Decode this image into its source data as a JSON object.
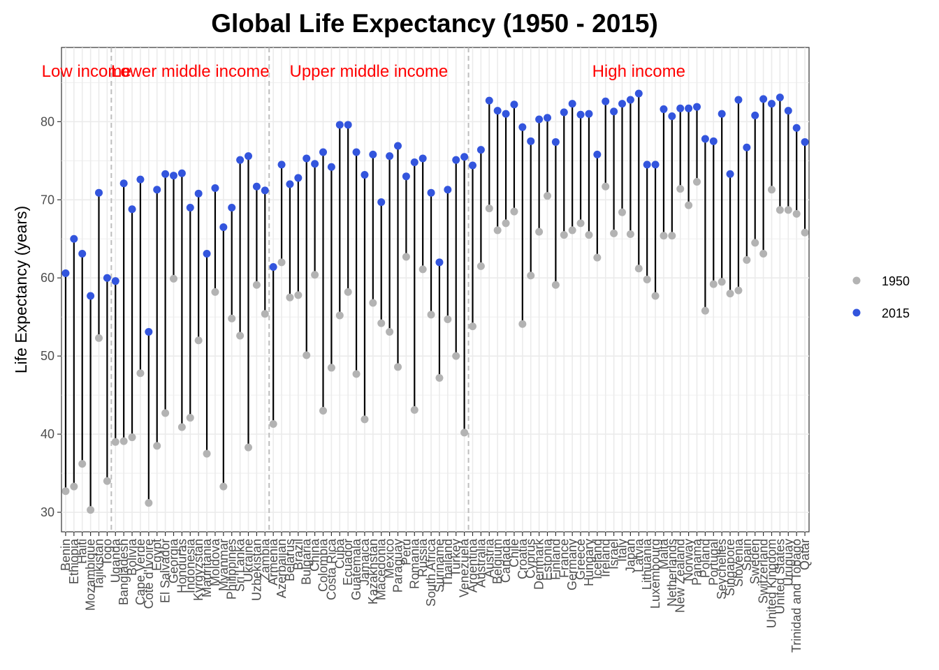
{
  "chart_data": {
    "type": "dumbbell",
    "title": "Global Life Expectancy (1950 - 2015)",
    "xlabel": "",
    "ylabel": "Life Expectancy (years)",
    "ylim": [
      27.5,
      89.5
    ],
    "yticks": [
      30,
      40,
      50,
      60,
      70,
      80
    ],
    "grid": true,
    "legend_position": "right",
    "series": [
      {
        "name": "1950",
        "color": "#b3b3b3"
      },
      {
        "name": "2015",
        "color": "#3355dd"
      }
    ],
    "groups": [
      {
        "label": "Low income",
        "start": 0
      },
      {
        "label": "Lower middle income",
        "start": 6
      },
      {
        "label": "Upper middle income",
        "start": 25
      },
      {
        "label": "High income",
        "start": 49
      }
    ],
    "points": [
      {
        "country": "Benin",
        "y1950": 32.7,
        "y2015": 60.6
      },
      {
        "country": "Ethiopia",
        "y1950": 33.3,
        "y2015": 65.0
      },
      {
        "country": "Haiti",
        "y1950": 36.2,
        "y2015": 63.1
      },
      {
        "country": "Mozambique",
        "y1950": 30.3,
        "y2015": 57.7
      },
      {
        "country": "Tajikistan",
        "y1950": 52.3,
        "y2015": 70.9
      },
      {
        "country": "Togo",
        "y1950": 34.0,
        "y2015": 60.0
      },
      {
        "country": "Uganda",
        "y1950": 39.0,
        "y2015": 59.6
      },
      {
        "country": "Bangladesh",
        "y1950": 39.1,
        "y2015": 72.1
      },
      {
        "country": "Bolivia",
        "y1950": 39.6,
        "y2015": 68.8
      },
      {
        "country": "Cape Verde",
        "y1950": 47.8,
        "y2015": 72.6
      },
      {
        "country": "Cote d'Ivoire",
        "y1950": 31.2,
        "y2015": 53.1
      },
      {
        "country": "Egypt",
        "y1950": 38.5,
        "y2015": 71.3
      },
      {
        "country": "El Salvador",
        "y1950": 42.7,
        "y2015": 73.3
      },
      {
        "country": "Georgia",
        "y1950": 59.9,
        "y2015": 73.1
      },
      {
        "country": "Honduras",
        "y1950": 40.9,
        "y2015": 73.4
      },
      {
        "country": "Indonesia",
        "y1950": 42.1,
        "y2015": 69.0
      },
      {
        "country": "Kyrgyzstan",
        "y1950": 52.0,
        "y2015": 70.8
      },
      {
        "country": "Mauritania",
        "y1950": 37.5,
        "y2015": 63.1
      },
      {
        "country": "Moldova",
        "y1950": 58.2,
        "y2015": 71.5
      },
      {
        "country": "Myanmar",
        "y1950": 33.3,
        "y2015": 66.5
      },
      {
        "country": "Philippines",
        "y1950": 54.8,
        "y2015": 69.0
      },
      {
        "country": "Sri Lanka",
        "y1950": 52.6,
        "y2015": 75.1
      },
      {
        "country": "Ukraine",
        "y1950": 38.3,
        "y2015": 75.6
      },
      {
        "country": "Uzbekistan",
        "y1950": 59.1,
        "y2015": 71.7
      },
      {
        "country": "Zambia",
        "y1950": 55.4,
        "y2015": 71.2
      },
      {
        "country": "Armenia",
        "y1950": 41.3,
        "y2015": 61.4
      },
      {
        "country": "Azerbaijan",
        "y1950": 62.0,
        "y2015": 74.5
      },
      {
        "country": "Belarus",
        "y1950": 57.5,
        "y2015": 72.0
      },
      {
        "country": "Brazil",
        "y1950": 57.8,
        "y2015": 72.8
      },
      {
        "country": "Bulgaria",
        "y1950": 50.1,
        "y2015": 75.3
      },
      {
        "country": "China",
        "y1950": 60.4,
        "y2015": 74.6
      },
      {
        "country": "Colombia",
        "y1950": 43.0,
        "y2015": 76.1
      },
      {
        "country": "Costa Rica",
        "y1950": 48.5,
        "y2015": 74.2
      },
      {
        "country": "Cuba",
        "y1950": 55.2,
        "y2015": 79.6
      },
      {
        "country": "Ecuador",
        "y1950": 58.2,
        "y2015": 79.6
      },
      {
        "country": "Guatemala",
        "y1950": 47.7,
        "y2015": 76.1
      },
      {
        "country": "Jamaica",
        "y1950": 41.9,
        "y2015": 73.2
      },
      {
        "country": "Kazakhstan",
        "y1950": 56.8,
        "y2015": 75.8
      },
      {
        "country": "Macedonia",
        "y1950": 54.2,
        "y2015": 69.7
      },
      {
        "country": "Mexico",
        "y1950": 53.1,
        "y2015": 75.6
      },
      {
        "country": "Paraguay",
        "y1950": 48.6,
        "y2015": 76.9
      },
      {
        "country": "Peru",
        "y1950": 62.7,
        "y2015": 73.0
      },
      {
        "country": "Romania",
        "y1950": 43.1,
        "y2015": 74.8
      },
      {
        "country": "Russia",
        "y1950": 61.1,
        "y2015": 75.3
      },
      {
        "country": "South Africa",
        "y1950": 55.3,
        "y2015": 70.9
      },
      {
        "country": "Suriname",
        "y1950": 47.2,
        "y2015": 62.0
      },
      {
        "country": "Thailand",
        "y1950": 54.7,
        "y2015": 71.3
      },
      {
        "country": "Turkey",
        "y1950": 50.0,
        "y2015": 75.1
      },
      {
        "country": "Venezuela",
        "y1950": 40.2,
        "y2015": 75.5
      },
      {
        "country": "Argentina",
        "y1950": 53.8,
        "y2015": 74.4
      },
      {
        "country": "Australia",
        "y1950": 61.5,
        "y2015": 76.4
      },
      {
        "country": "Austria",
        "y1950": 68.9,
        "y2015": 82.7
      },
      {
        "country": "Belgium",
        "y1950": 66.1,
        "y2015": 81.4
      },
      {
        "country": "Canada",
        "y1950": 67.0,
        "y2015": 81.0
      },
      {
        "country": "Chile",
        "y1950": 68.5,
        "y2015": 82.2
      },
      {
        "country": "Croatia",
        "y1950": 54.1,
        "y2015": 79.3
      },
      {
        "country": "Cyprus",
        "y1950": 60.3,
        "y2015": 77.5
      },
      {
        "country": "Denmark",
        "y1950": 65.9,
        "y2015": 80.3
      },
      {
        "country": "Estonia",
        "y1950": 70.5,
        "y2015": 80.5
      },
      {
        "country": "Finland",
        "y1950": 59.1,
        "y2015": 77.4
      },
      {
        "country": "France",
        "y1950": 65.5,
        "y2015": 81.2
      },
      {
        "country": "Germany",
        "y1950": 66.1,
        "y2015": 82.3
      },
      {
        "country": "Greece",
        "y1950": 67.0,
        "y2015": 80.9
      },
      {
        "country": "Hungary",
        "y1950": 65.5,
        "y2015": 81.0
      },
      {
        "country": "Iceland",
        "y1950": 62.6,
        "y2015": 75.8
      },
      {
        "country": "Ireland",
        "y1950": 71.7,
        "y2015": 82.6
      },
      {
        "country": "Israel",
        "y1950": 65.7,
        "y2015": 81.3
      },
      {
        "country": "Italy",
        "y1950": 68.4,
        "y2015": 82.3
      },
      {
        "country": "Japan",
        "y1950": 65.6,
        "y2015": 82.8
      },
      {
        "country": "Latvia",
        "y1950": 61.2,
        "y2015": 83.6
      },
      {
        "country": "Lithuania",
        "y1950": 59.8,
        "y2015": 74.5
      },
      {
        "country": "Luxembourg",
        "y1950": 57.7,
        "y2015": 74.5
      },
      {
        "country": "Malta",
        "y1950": 65.4,
        "y2015": 81.6
      },
      {
        "country": "Netherlands",
        "y1950": 65.4,
        "y2015": 80.7
      },
      {
        "country": "New Zealand",
        "y1950": 71.4,
        "y2015": 81.7
      },
      {
        "country": "Norway",
        "y1950": 69.3,
        "y2015": 81.7
      },
      {
        "country": "Panama",
        "y1950": 72.3,
        "y2015": 81.9
      },
      {
        "country": "Poland",
        "y1950": 55.8,
        "y2015": 77.8
      },
      {
        "country": "Portugal",
        "y1950": 59.2,
        "y2015": 77.5
      },
      {
        "country": "Seychelles",
        "y1950": 59.5,
        "y2015": 81.0
      },
      {
        "country": "Singapore",
        "y1950": 58.0,
        "y2015": 73.3
      },
      {
        "country": "Slovenia",
        "y1950": 58.4,
        "y2015": 82.8
      },
      {
        "country": "Spain",
        "y1950": 62.3,
        "y2015": 76.7
      },
      {
        "country": "Sweden",
        "y1950": 64.5,
        "y2015": 80.8
      },
      {
        "country": "Switzerland",
        "y1950": 63.1,
        "y2015": 82.9
      },
      {
        "country": "United Kingdom",
        "y1950": 71.3,
        "y2015": 82.3
      },
      {
        "country": "United States",
        "y1950": 68.7,
        "y2015": 83.1
      },
      {
        "country": "Uruguay",
        "y1950": 68.7,
        "y2015": 81.4
      },
      {
        "country": "Trinidad and Tobago",
        "y1950": 68.2,
        "y2015": 79.2
      },
      {
        "country": "Qatar",
        "y1950": 65.8,
        "y2015": 77.4
      }
    ]
  }
}
